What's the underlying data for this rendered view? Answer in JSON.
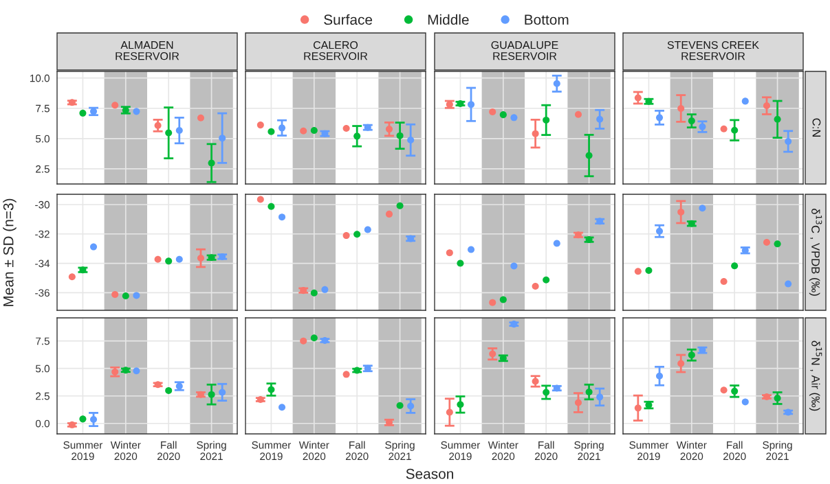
{
  "chart_data": [
    {
      "type": "scatter",
      "title": "ALMADEN\nRESERVOIR",
      "categories": [
        "Summer\n2019",
        "Winter\n2020",
        "Fall\n2020",
        "Spring\n2021"
      ],
      "ylim": [
        1.25,
        10.55
      ],
      "yticks": [
        2.5,
        {
          "value": 5,
          "label": "5.0"
        },
        7.5,
        {
          "value": 10,
          "label": "10.0"
        }
      ],
      "grid": true,
      "marker": "circle",
      "tick_labels": "y",
      "legend": "top",
      "bands": [
        {
          "axis": "x",
          "from": "Winter\n2020",
          "to": "Winter\n2020",
          "color": "#bebebe"
        },
        {
          "axis": "x",
          "from": "Spring\n2021",
          "to": "Spring\n2021",
          "color": "#bebebe"
        }
      ],
      "series": [
        {
          "name": "Surface",
          "color": "#f8766d",
          "values": [
            7.98,
            7.76,
            6.08,
            6.71
          ],
          "errors": [
            0.15,
            null,
            0.48,
            null
          ]
        },
        {
          "name": "Middle",
          "color": "#00ba38",
          "values": [
            7.1,
            7.35,
            5.47,
            2.98
          ],
          "errors": [
            null,
            0.27,
            2.1,
            1.57
          ]
        },
        {
          "name": "Bottom",
          "color": "#619cff",
          "values": [
            7.24,
            7.24,
            5.67,
            5.04
          ],
          "errors": [
            0.3,
            null,
            1.06,
            2.05
          ]
        }
      ]
    },
    {
      "type": "scatter",
      "title": "CALERO\nRESERVOIR",
      "categories": [
        "Summer\n2019",
        "Winter\n2020",
        "Fall\n2020",
        "Spring\n2021"
      ],
      "ylim": [
        1.25,
        10.55
      ],
      "yticks": [
        2.5,
        {
          "value": 5,
          "label": "5.0"
        },
        7.5,
        {
          "value": 10,
          "label": "10.0"
        }
      ],
      "grid": true,
      "marker": "circle",
      "tick_labels": false,
      "bands": [
        {
          "axis": "x",
          "from": "Winter\n2020",
          "to": "Winter\n2020",
          "color": "#bebebe"
        },
        {
          "axis": "x",
          "from": "Spring\n2021",
          "to": "Spring\n2021",
          "color": "#bebebe"
        }
      ],
      "series": [
        {
          "name": "Surface",
          "color": "#f8766d",
          "values": [
            6.12,
            5.63,
            5.84,
            5.78
          ],
          "errors": [
            null,
            null,
            null,
            0.55
          ]
        },
        {
          "name": "Middle",
          "color": "#00ba38",
          "values": [
            5.57,
            5.67,
            5.2,
            5.24
          ],
          "errors": [
            null,
            null,
            0.84,
            1.08
          ]
        },
        {
          "name": "Bottom",
          "color": "#619cff",
          "values": [
            5.88,
            5.41,
            5.92,
            4.88
          ],
          "errors": [
            0.63,
            0.2,
            0.2,
            1.29
          ]
        }
      ]
    },
    {
      "type": "scatter",
      "title": "GUADALUPE\nRESERVOIR",
      "categories": [
        "Summer\n2019",
        "Winter\n2020",
        "Fall\n2020",
        "Spring\n2021"
      ],
      "ylim": [
        1.25,
        10.55
      ],
      "yticks": [
        2.5,
        {
          "value": 5,
          "label": "5.0"
        },
        7.5,
        {
          "value": 10,
          "label": "10.0"
        }
      ],
      "grid": true,
      "marker": "circle",
      "tick_labels": false,
      "bands": [
        {
          "axis": "x",
          "from": "Winter\n2020",
          "to": "Winter\n2020",
          "color": "#bebebe"
        },
        {
          "axis": "x",
          "from": "Spring\n2021",
          "to": "Spring\n2021",
          "color": "#bebebe"
        }
      ],
      "series": [
        {
          "name": "Surface",
          "color": "#f8766d",
          "values": [
            7.82,
            7.21,
            5.41,
            6.99
          ],
          "errors": [
            0.29,
            null,
            1.15,
            null
          ]
        },
        {
          "name": "Middle",
          "color": "#00ba38",
          "values": [
            7.89,
            6.97,
            6.53,
            3.6
          ],
          "errors": [
            0.15,
            null,
            1.23,
            1.71
          ]
        },
        {
          "name": "Bottom",
          "color": "#619cff",
          "values": [
            7.82,
            6.73,
            9.54,
            6.59
          ],
          "errors": [
            1.37,
            null,
            0.66,
            0.77
          ]
        }
      ]
    },
    {
      "type": "scatter",
      "title": "STEVENS CREEK\nRESERVOIR",
      "annotations": [
        "C:N"
      ],
      "categories": [
        "Summer\n2019",
        "Winter\n2020",
        "Fall\n2020",
        "Spring\n2021"
      ],
      "ylim": [
        1.25,
        10.55
      ],
      "yticks": [
        2.5,
        {
          "value": 5,
          "label": "5.0"
        },
        7.5,
        {
          "value": 10,
          "label": "10.0"
        }
      ],
      "grid": true,
      "marker": "circle",
      "tick_labels": false,
      "bands": [
        {
          "axis": "x",
          "from": "Winter\n2020",
          "to": "Winter\n2020",
          "color": "#bebebe"
        },
        {
          "axis": "x",
          "from": "Spring\n2021",
          "to": "Spring\n2021",
          "color": "#bebebe"
        }
      ],
      "series": [
        {
          "name": "Surface",
          "color": "#f8766d",
          "values": [
            8.37,
            7.49,
            5.8,
            7.71
          ],
          "errors": [
            0.48,
            1.1,
            null,
            0.7
          ]
        },
        {
          "name": "Middle",
          "color": "#00ba38",
          "values": [
            8.07,
            6.46,
            5.69,
            6.59
          ],
          "errors": [
            0.2,
            0.54,
            0.84,
            1.52
          ]
        },
        {
          "name": "Bottom",
          "color": "#619cff",
          "values": [
            6.73,
            5.98,
            8.09,
            4.77
          ],
          "errors": [
            0.57,
            0.44,
            null,
            0.86
          ]
        }
      ]
    },
    {
      "type": "scatter",
      "ylabel": "Mean ± SD (n=3)",
      "categories": [
        "Summer\n2019",
        "Winter\n2020",
        "Fall\n2020",
        "Spring\n2021"
      ],
      "ylim": [
        -37.2,
        -29.3
      ],
      "yticks": [
        -36,
        -34,
        -32,
        -30
      ],
      "grid": true,
      "marker": "circle",
      "tick_labels": "y",
      "bands": [
        {
          "axis": "x",
          "from": "Winter\n2020",
          "to": "Winter\n2020",
          "color": "#bebebe"
        },
        {
          "axis": "x",
          "from": "Spring\n2021",
          "to": "Spring\n2021",
          "color": "#bebebe"
        }
      ],
      "series": [
        {
          "name": "Surface",
          "color": "#f8766d",
          "values": [
            -34.92,
            -36.12,
            -33.73,
            -33.65
          ],
          "errors": [
            null,
            null,
            null,
            0.6
          ]
        },
        {
          "name": "Middle",
          "color": "#00ba38",
          "values": [
            -34.45,
            -36.22,
            -33.85,
            -33.61
          ],
          "errors": [
            0.15,
            null,
            null,
            0.15
          ]
        },
        {
          "name": "Bottom",
          "color": "#619cff",
          "values": [
            -32.88,
            -36.19,
            -33.73,
            -33.55
          ],
          "errors": [
            null,
            null,
            null,
            0.15
          ]
        }
      ]
    },
    {
      "type": "scatter",
      "categories": [
        "Summer\n2019",
        "Winter\n2020",
        "Fall\n2020",
        "Spring\n2021"
      ],
      "ylim": [
        -37.2,
        -29.3
      ],
      "yticks": [
        -36,
        -34,
        -32,
        -30
      ],
      "grid": true,
      "marker": "circle",
      "tick_labels": false,
      "bands": [
        {
          "axis": "x",
          "from": "Winter\n2020",
          "to": "Winter\n2020",
          "color": "#bebebe"
        },
        {
          "axis": "x",
          "from": "Spring\n2021",
          "to": "Spring\n2021",
          "color": "#bebebe"
        }
      ],
      "series": [
        {
          "name": "Surface",
          "color": "#f8766d",
          "values": [
            -29.65,
            -35.85,
            -32.11,
            -30.65
          ],
          "errors": [
            null,
            0.15,
            null,
            null
          ]
        },
        {
          "name": "Middle",
          "color": "#00ba38",
          "values": [
            -30.13,
            -36.02,
            -32.02,
            -30.08
          ],
          "errors": [
            null,
            null,
            null,
            null
          ]
        },
        {
          "name": "Bottom",
          "color": "#619cff",
          "values": [
            -30.85,
            -35.79,
            -31.71,
            -32.32
          ],
          "errors": [
            null,
            null,
            null,
            0.15
          ]
        }
      ]
    },
    {
      "type": "scatter",
      "categories": [
        "Summer\n2019",
        "Winter\n2020",
        "Fall\n2020",
        "Spring\n2021"
      ],
      "ylim": [
        -37.2,
        -29.3
      ],
      "yticks": [
        -36,
        -34,
        -32,
        -30
      ],
      "grid": true,
      "marker": "circle",
      "tick_labels": false,
      "bands": [
        {
          "axis": "x",
          "from": "Winter\n2020",
          "to": "Winter\n2020",
          "color": "#bebebe"
        },
        {
          "axis": "x",
          "from": "Spring\n2021",
          "to": "Spring\n2021",
          "color": "#bebebe"
        }
      ],
      "series": [
        {
          "name": "Surface",
          "color": "#f8766d",
          "values": [
            -33.28,
            -36.67,
            -35.56,
            -32.07
          ],
          "errors": [
            null,
            null,
            null,
            0.15
          ]
        },
        {
          "name": "Middle",
          "color": "#00ba38",
          "values": [
            -34.0,
            -36.47,
            -35.13,
            -32.39
          ],
          "errors": [
            null,
            null,
            null,
            0.15
          ]
        },
        {
          "name": "Bottom",
          "color": "#619cff",
          "values": [
            -33.06,
            -34.18,
            -32.64,
            -31.14
          ],
          "errors": [
            null,
            null,
            null,
            0.15
          ]
        }
      ]
    },
    {
      "type": "scatter",
      "annotations": [
        "δ$^{13}$C , VPDB (‰)"
      ],
      "categories": [
        "Summer\n2019",
        "Winter\n2020",
        "Fall\n2020",
        "Spring\n2021"
      ],
      "ylim": [
        -37.2,
        -29.3
      ],
      "yticks": [
        -36,
        -34,
        -32,
        -30
      ],
      "grid": true,
      "marker": "circle",
      "tick_labels": false,
      "bands": [
        {
          "axis": "x",
          "from": "Winter\n2020",
          "to": "Winter\n2020",
          "color": "#bebebe"
        },
        {
          "axis": "x",
          "from": "Spring\n2021",
          "to": "Spring\n2021",
          "color": "#bebebe"
        }
      ],
      "series": [
        {
          "name": "Surface",
          "color": "#f8766d",
          "values": [
            -34.55,
            -30.51,
            -35.24,
            -32.57
          ],
          "errors": [
            null,
            0.75,
            null,
            null
          ]
        },
        {
          "name": "Middle",
          "color": "#00ba38",
          "values": [
            -34.49,
            -31.3,
            -34.17,
            -32.68
          ],
          "errors": [
            null,
            0.15,
            null,
            null
          ]
        },
        {
          "name": "Bottom",
          "color": "#619cff",
          "values": [
            -31.81,
            -30.25,
            -33.12,
            -35.4
          ],
          "errors": [
            0.4,
            null,
            0.2,
            null
          ]
        }
      ]
    },
    {
      "type": "scatter",
      "categories": [
        "Summer\n2019",
        "Winter\n2020",
        "Fall\n2020",
        "Spring\n2021"
      ],
      "ylim": [
        -0.95,
        9.6
      ],
      "yticks": [
        {
          "value": 0,
          "label": "0.0"
        },
        2.5,
        {
          "value": 5,
          "label": "5.0"
        },
        7.5
      ],
      "grid": true,
      "marker": "circle",
      "bands": [
        {
          "axis": "x",
          "from": "Winter\n2020",
          "to": "Winter\n2020",
          "color": "#bebebe"
        },
        {
          "axis": "x",
          "from": "Spring\n2021",
          "to": "Spring\n2021",
          "color": "#bebebe"
        }
      ],
      "series": [
        {
          "name": "Surface",
          "color": "#f8766d",
          "values": [
            -0.13,
            4.69,
            3.53,
            2.63
          ],
          "errors": [
            0.15,
            0.4,
            0.15,
            0.2
          ]
        },
        {
          "name": "Middle",
          "color": "#00ba38",
          "values": [
            0.4,
            4.84,
            2.99,
            2.63
          ],
          "errors": [
            null,
            0.15,
            null,
            0.9
          ]
        },
        {
          "name": "Bottom",
          "color": "#619cff",
          "values": [
            0.36,
            4.78,
            3.39,
            2.83
          ],
          "errors": [
            0.6,
            null,
            0.36,
            0.76
          ]
        }
      ]
    },
    {
      "type": "scatter",
      "xlabel": "Season",
      "categories": [
        "Summer\n2019",
        "Winter\n2020",
        "Fall\n2020",
        "Spring\n2021"
      ],
      "ylim": [
        -0.95,
        9.6
      ],
      "yticks": [
        {
          "value": 0,
          "label": "0.0"
        },
        2.5,
        {
          "value": 5,
          "label": "5.0"
        },
        7.5
      ],
      "grid": true,
      "marker": "circle",
      "tick_labels": "x",
      "bands": [
        {
          "axis": "x",
          "from": "Winter\n2020",
          "to": "Winter\n2020",
          "color": "#bebebe"
        },
        {
          "axis": "x",
          "from": "Spring\n2021",
          "to": "Spring\n2021",
          "color": "#bebebe"
        }
      ],
      "series": [
        {
          "name": "Surface",
          "color": "#f8766d",
          "values": [
            2.17,
            7.5,
            4.46,
            0.09
          ],
          "errors": [
            0.15,
            null,
            null,
            0.25
          ]
        },
        {
          "name": "Middle",
          "color": "#00ba38",
          "values": [
            3.08,
            7.77,
            4.82,
            1.63
          ],
          "errors": [
            0.55,
            null,
            0.15,
            null
          ]
        },
        {
          "name": "Bottom",
          "color": "#619cff",
          "values": [
            1.47,
            7.54,
            5.0,
            1.58
          ],
          "errors": [
            null,
            0.15,
            0.25,
            0.62
          ]
        }
      ]
    },
    {
      "type": "scatter",
      "categories": [
        "Summer\n2019",
        "Winter\n2020",
        "Fall\n2020",
        "Spring\n2021"
      ],
      "ylim": [
        -0.95,
        9.6
      ],
      "yticks": [
        {
          "value": 0,
          "label": "0.0"
        },
        2.5,
        {
          "value": 5,
          "label": "5.0"
        },
        7.5
      ],
      "grid": true,
      "marker": "circle",
      "tick_labels": "x",
      "bands": [
        {
          "axis": "x",
          "from": "Winter\n2020",
          "to": "Winter\n2020",
          "color": "#bebebe"
        },
        {
          "axis": "x",
          "from": "Spring\n2021",
          "to": "Spring\n2021",
          "color": "#bebebe"
        }
      ],
      "series": [
        {
          "name": "Surface",
          "color": "#f8766d",
          "values": [
            1.02,
            6.32,
            3.83,
            1.89
          ],
          "errors": [
            1.23,
            0.51,
            0.48,
            0.87
          ]
        },
        {
          "name": "Middle",
          "color": "#00ba38",
          "values": [
            1.72,
            5.93,
            2.83,
            2.86
          ],
          "errors": [
            0.74,
            0.25,
            0.6,
            0.67
          ]
        },
        {
          "name": "Bottom",
          "color": "#619cff",
          "values": [
            null,
            9.03,
            3.2,
            2.4
          ],
          "errors": [
            null,
            0.15,
            0.2,
            0.77
          ]
        }
      ]
    },
    {
      "type": "scatter",
      "annotations": [
        "δ$^{15}$N , Air (‰)"
      ],
      "categories": [
        "Summer\n2019",
        "Winter\n2020",
        "Fall\n2020",
        "Spring\n2021"
      ],
      "ylim": [
        -0.95,
        9.6
      ],
      "yticks": [
        {
          "value": 0,
          "label": "0.0"
        },
        2.5,
        {
          "value": 5,
          "label": "5.0"
        },
        7.5
      ],
      "grid": true,
      "marker": "circle",
      "tick_labels": "x",
      "bands": [
        {
          "axis": "x",
          "from": "Winter\n2020",
          "to": "Winter\n2020",
          "color": "#bebebe"
        },
        {
          "axis": "x",
          "from": "Spring\n2021",
          "to": "Spring\n2021",
          "color": "#bebebe"
        }
      ],
      "series": [
        {
          "name": "Surface",
          "color": "#f8766d",
          "values": [
            1.4,
            5.45,
            3.03,
            2.42
          ],
          "errors": [
            1.14,
            0.78,
            null,
            0.15
          ]
        },
        {
          "name": "Middle",
          "color": "#00ba38",
          "values": [
            1.67,
            6.22,
            2.93,
            2.3
          ],
          "errors": [
            0.3,
            0.5,
            0.52,
            0.53
          ]
        },
        {
          "name": "Bottom",
          "color": "#619cff",
          "values": [
            4.31,
            6.66,
            1.96,
            1.02
          ],
          "errors": [
            0.84,
            0.25,
            null,
            0.15
          ]
        }
      ]
    }
  ]
}
